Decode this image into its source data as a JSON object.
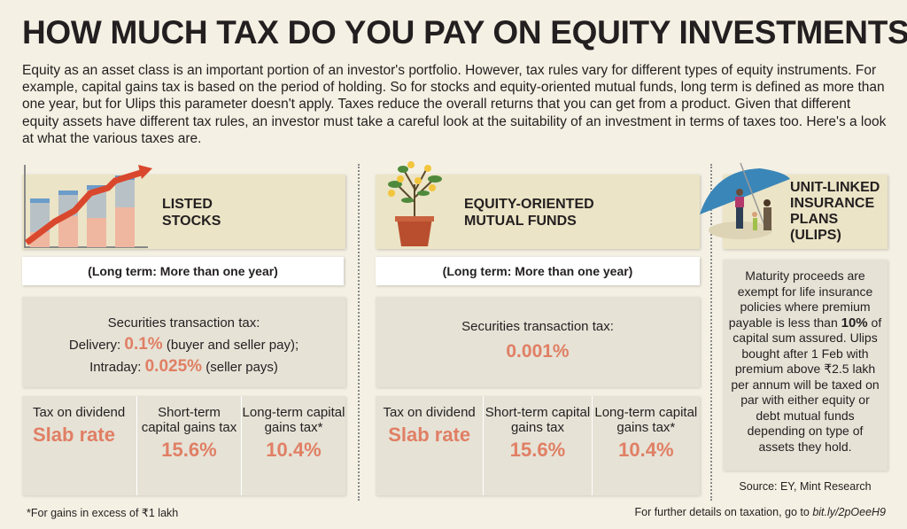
{
  "title": "HOW MUCH TAX DO YOU PAY ON EQUITY INVESTMENTS?",
  "intro": "Equity as an asset class is an important portion of an investor's portfolio. However, tax rules vary for different types of equity instruments. For example, capital gains tax is based on the period of holding. So for stocks and equity-oriented mutual funds, long term is defined as more than one year, but for Ulips this parameter doesn't apply. Taxes reduce the overall returns that you can get from a product. Given that different equity assets have different tax rules, an investor must take a careful look at the suitability of an investment in terms of taxes too. Here's a look at what the various taxes are.",
  "colors": {
    "background": "#f4f0e3",
    "header_box": "#ebe4c6",
    "info_box": "#e6e2d6",
    "accent": "#e07f64"
  },
  "stocks": {
    "heading": [
      "LISTED",
      "STOCKS"
    ],
    "icon": "rising-bar-chart-icon",
    "long_term": "(Long term: More than one year)",
    "stt_label": "Securities transaction tax:",
    "delivery_label": "Delivery:",
    "delivery_rate": "0.1%",
    "delivery_note": "(buyer and seller pay);",
    "intraday_label": "Intraday:",
    "intraday_rate": "0.025%",
    "intraday_note": "(seller pays)",
    "cells": [
      {
        "label": "Tax on dividend",
        "value": "Slab rate"
      },
      {
        "label": "Short-term capital gains tax",
        "value": "15.6%"
      },
      {
        "label": "Long-term capital gains tax*",
        "value": "10.4%"
      }
    ]
  },
  "mf": {
    "heading": [
      "EQUITY-ORIENTED",
      "MUTUAL FUNDS"
    ],
    "icon": "money-plant-icon",
    "long_term": "(Long term: More than one year)",
    "stt_label": "Securities transaction tax:",
    "stt_rate": "0.001%",
    "cells": [
      {
        "label": "Tax on dividend",
        "value": "Slab rate"
      },
      {
        "label": "Short-term capital gains tax",
        "value": "15.6%"
      },
      {
        "label": "Long-term capital gains tax*",
        "value": "10.4%"
      }
    ]
  },
  "ulip": {
    "heading": [
      "UNIT-LINKED",
      "INSURANCE",
      "PLANS",
      "(ULIPS)"
    ],
    "icon": "family-umbrella-icon",
    "text_a": "Maturity proceeds are exempt for life insurance policies where premium payable is less than",
    "text_pct": "10%",
    "text_b": "of capital sum assured. Ulips bought after 1 Feb with premium above ₹2.5 lakh per annum will be taxed on par with either equity or debt mutual funds depending on type of assets they hold."
  },
  "source": "Source: EY, Mint Research",
  "footnote": "*For gains in excess of ₹1 lakh",
  "further": "For further details on taxation, go to",
  "link": "bit.ly/2pOeeH9"
}
